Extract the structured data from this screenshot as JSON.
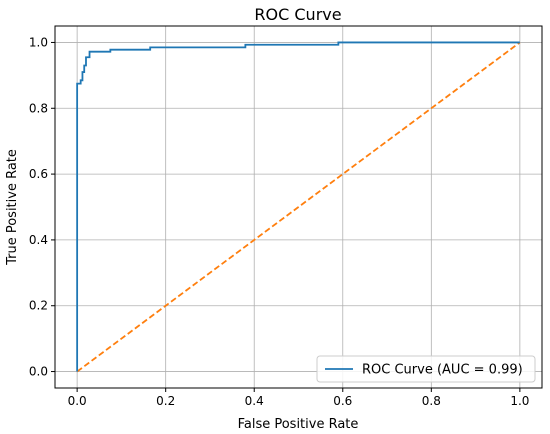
{
  "chart_data": {
    "type": "line",
    "title": "ROC Curve",
    "xlabel": "False Positive Rate",
    "ylabel": "True Positive Rate",
    "xlim": [
      -0.05,
      1.05
    ],
    "ylim": [
      -0.05,
      1.05
    ],
    "xticks": [
      0.0,
      0.2,
      0.4,
      0.6,
      0.8,
      1.0
    ],
    "xtick_labels": [
      "0.0",
      "0.2",
      "0.4",
      "0.6",
      "0.8",
      "1.0"
    ],
    "yticks": [
      0.0,
      0.2,
      0.4,
      0.6,
      0.8,
      1.0
    ],
    "ytick_labels": [
      "0.0",
      "0.2",
      "0.4",
      "0.6",
      "0.8",
      "1.0"
    ],
    "grid": true,
    "legend_position": "lower right",
    "series": [
      {
        "name": "ROC Curve (AUC = 0.99)",
        "color": "#1f77b4",
        "style": "solid",
        "x": [
          0.0,
          0.0,
          0.008,
          0.008,
          0.012,
          0.012,
          0.016,
          0.016,
          0.02,
          0.02,
          0.028,
          0.028,
          0.075,
          0.075,
          0.165,
          0.165,
          0.38,
          0.38,
          0.59,
          0.59,
          1.0
        ],
        "y": [
          0.0,
          0.875,
          0.875,
          0.885,
          0.885,
          0.91,
          0.91,
          0.93,
          0.93,
          0.955,
          0.955,
          0.972,
          0.972,
          0.978,
          0.978,
          0.985,
          0.985,
          0.993,
          0.993,
          1.0,
          1.0
        ]
      },
      {
        "name": "",
        "color": "#ff7f0e",
        "style": "dashed",
        "x": [
          0.0,
          1.0
        ],
        "y": [
          0.0,
          1.0
        ]
      }
    ]
  }
}
